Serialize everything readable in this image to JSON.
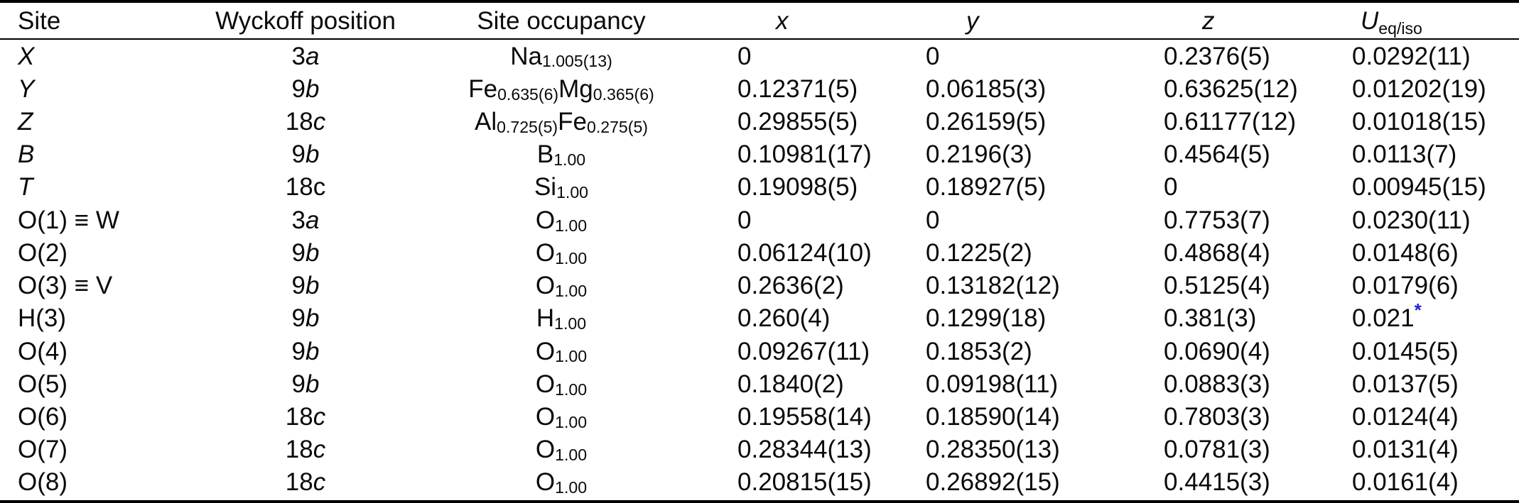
{
  "meta": {
    "star_color": "#2323d6",
    "text_color": "#0a0a0a"
  },
  "table": {
    "header": {
      "site": "Site",
      "wyckoff": "Wyckoff position",
      "occupancy": "Site occupancy",
      "x": "x",
      "y": "y",
      "z": "z",
      "u_main": "U",
      "u_sub": "eq/iso"
    },
    "rows": [
      {
        "site": [
          {
            "t": "X",
            "i": true
          }
        ],
        "wyckoff": [
          {
            "t": "3"
          },
          {
            "t": "a",
            "i": true
          }
        ],
        "occupancy": [
          {
            "t": "Na",
            "sub": "1.005(13)"
          }
        ],
        "x": "0",
        "y": "0",
        "z": "0.2376(5)",
        "u": "0.0292(11)",
        "u_star": false
      },
      {
        "site": [
          {
            "t": "Y",
            "i": true
          }
        ],
        "wyckoff": [
          {
            "t": "9"
          },
          {
            "t": "b",
            "i": true
          }
        ],
        "occupancy": [
          {
            "t": "Fe",
            "sub": "0.635(6)"
          },
          {
            "t": "Mg",
            "sub": "0.365(6)"
          }
        ],
        "x": "0.12371(5)",
        "y": "0.06185(3)",
        "z": "0.63625(12)",
        "u": "0.01202(19)",
        "u_star": false
      },
      {
        "site": [
          {
            "t": "Z",
            "i": true
          }
        ],
        "wyckoff": [
          {
            "t": "18"
          },
          {
            "t": "c",
            "i": true
          }
        ],
        "occupancy": [
          {
            "t": "Al",
            "sub": "0.725(5)"
          },
          {
            "t": "Fe",
            "sub": "0.275(5)"
          }
        ],
        "x": "0.29855(5)",
        "y": "0.26159(5)",
        "z": "0.61177(12)",
        "u": "0.01018(15)",
        "u_star": false
      },
      {
        "site": [
          {
            "t": "B",
            "i": true
          }
        ],
        "wyckoff": [
          {
            "t": "9"
          },
          {
            "t": "b",
            "i": true
          }
        ],
        "occupancy": [
          {
            "t": "B",
            "sub": "1.00"
          }
        ],
        "x": "0.10981(17)",
        "y": "0.2196(3)",
        "z": "0.4564(5)",
        "u": "0.0113(7)",
        "u_star": false
      },
      {
        "site": [
          {
            "t": "T",
            "i": true
          }
        ],
        "wyckoff": [
          {
            "t": "18c"
          }
        ],
        "occupancy": [
          {
            "t": "Si",
            "sub": "1.00"
          }
        ],
        "x": "0.19098(5)",
        "y": "0.18927(5)",
        "z": "0",
        "u": "0.00945(15)",
        "u_star": false
      },
      {
        "site": [
          {
            "t": "O(1) ≡ W"
          }
        ],
        "wyckoff": [
          {
            "t": "3"
          },
          {
            "t": "a",
            "i": true
          }
        ],
        "occupancy": [
          {
            "t": "O",
            "sub": "1.00"
          }
        ],
        "x": "0",
        "y": "0",
        "z": "0.7753(7)",
        "u": "0.0230(11)",
        "u_star": false
      },
      {
        "site": [
          {
            "t": "O(2)"
          }
        ],
        "wyckoff": [
          {
            "t": "9"
          },
          {
            "t": "b",
            "i": true
          }
        ],
        "occupancy": [
          {
            "t": "O",
            "sub": "1.00"
          }
        ],
        "x": "0.06124(10)",
        "y": "0.1225(2)",
        "z": "0.4868(4)",
        "u": "0.0148(6)",
        "u_star": false
      },
      {
        "site": [
          {
            "t": "O(3) ≡ V"
          }
        ],
        "wyckoff": [
          {
            "t": "9"
          },
          {
            "t": "b",
            "i": true
          }
        ],
        "occupancy": [
          {
            "t": "O",
            "sub": "1.00"
          }
        ],
        "x": "0.2636(2)",
        "y": "0.13182(12)",
        "z": "0.5125(4)",
        "u": "0.0179(6)",
        "u_star": false
      },
      {
        "site": [
          {
            "t": "H(3)"
          }
        ],
        "wyckoff": [
          {
            "t": "9"
          },
          {
            "t": "b",
            "i": true
          }
        ],
        "occupancy": [
          {
            "t": "H",
            "sub": "1.00"
          }
        ],
        "x": "0.260(4)",
        "y": "0.1299(18)",
        "z": "0.381(3)",
        "u": "0.021",
        "u_star": true
      },
      {
        "site": [
          {
            "t": "O(4)"
          }
        ],
        "wyckoff": [
          {
            "t": "9"
          },
          {
            "t": "b",
            "i": true
          }
        ],
        "occupancy": [
          {
            "t": "O",
            "sub": "1.00"
          }
        ],
        "x": "0.09267(11)",
        "y": "0.1853(2)",
        "z": "0.0690(4)",
        "u": "0.0145(5)",
        "u_star": false
      },
      {
        "site": [
          {
            "t": "O(5)"
          }
        ],
        "wyckoff": [
          {
            "t": "9"
          },
          {
            "t": "b",
            "i": true
          }
        ],
        "occupancy": [
          {
            "t": "O",
            "sub": "1.00"
          }
        ],
        "x": "0.1840(2)",
        "y": "0.09198(11)",
        "z": "0.0883(3)",
        "u": "0.0137(5)",
        "u_star": false
      },
      {
        "site": [
          {
            "t": "O(6)"
          }
        ],
        "wyckoff": [
          {
            "t": "18"
          },
          {
            "t": "c",
            "i": true
          }
        ],
        "occupancy": [
          {
            "t": "O",
            "sub": "1.00"
          }
        ],
        "x": "0.19558(14)",
        "y": "0.18590(14)",
        "z": "0.7803(3)",
        "u": "0.0124(4)",
        "u_star": false
      },
      {
        "site": [
          {
            "t": "O(7)"
          }
        ],
        "wyckoff": [
          {
            "t": "18"
          },
          {
            "t": "c",
            "i": true
          }
        ],
        "occupancy": [
          {
            "t": "O",
            "sub": "1.00"
          }
        ],
        "x": "0.28344(13)",
        "y": "0.28350(13)",
        "z": "0.0781(3)",
        "u": "0.0131(4)",
        "u_star": false
      },
      {
        "site": [
          {
            "t": "O(8)"
          }
        ],
        "wyckoff": [
          {
            "t": "18"
          },
          {
            "t": "c",
            "i": true
          }
        ],
        "occupancy": [
          {
            "t": "O",
            "sub": "1.00"
          }
        ],
        "x": "0.20815(15)",
        "y": "0.26892(15)",
        "z": "0.4415(3)",
        "u": "0.0161(4)",
        "u_star": false
      }
    ]
  }
}
